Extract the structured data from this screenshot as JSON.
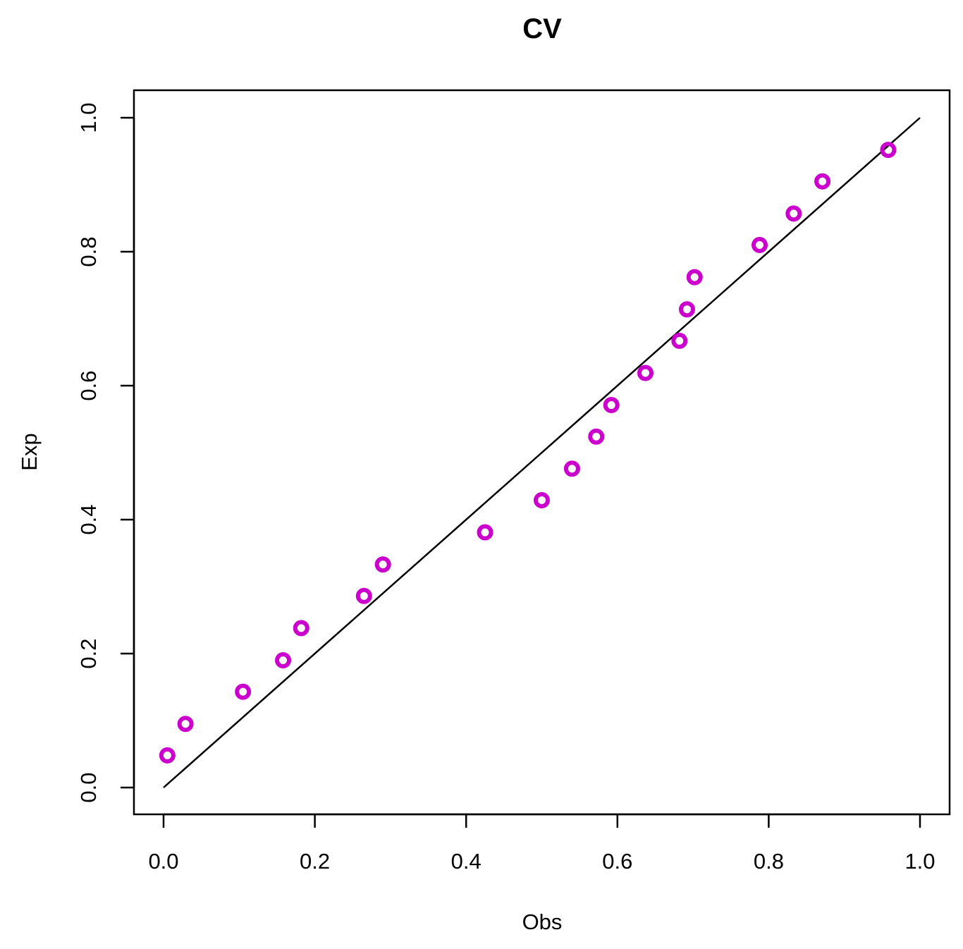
{
  "chart_data": {
    "type": "scatter",
    "title": "CV",
    "xlabel": "Obs",
    "ylabel": "Exp",
    "xlim": [
      0,
      1
    ],
    "ylim": [
      0,
      1
    ],
    "x_ticks": [
      "0.0",
      "0.2",
      "0.4",
      "0.6",
      "0.8",
      "1.0"
    ],
    "y_ticks": [
      "0.0",
      "0.2",
      "0.4",
      "0.6",
      "0.8",
      "1.0"
    ],
    "grid": false,
    "legend": "none",
    "point_color": "#CC00CC",
    "line_color": "#000000",
    "reference_line": {
      "from": [
        0,
        0
      ],
      "to": [
        1,
        1
      ]
    },
    "points": [
      {
        "x": 0.005,
        "y": 0.048
      },
      {
        "x": 0.029,
        "y": 0.095
      },
      {
        "x": 0.105,
        "y": 0.143
      },
      {
        "x": 0.158,
        "y": 0.19
      },
      {
        "x": 0.182,
        "y": 0.238
      },
      {
        "x": 0.265,
        "y": 0.286
      },
      {
        "x": 0.29,
        "y": 0.333
      },
      {
        "x": 0.425,
        "y": 0.381
      },
      {
        "x": 0.5,
        "y": 0.429
      },
      {
        "x": 0.54,
        "y": 0.476
      },
      {
        "x": 0.572,
        "y": 0.524
      },
      {
        "x": 0.592,
        "y": 0.571
      },
      {
        "x": 0.637,
        "y": 0.619
      },
      {
        "x": 0.682,
        "y": 0.667
      },
      {
        "x": 0.692,
        "y": 0.714
      },
      {
        "x": 0.702,
        "y": 0.762
      },
      {
        "x": 0.788,
        "y": 0.81
      },
      {
        "x": 0.833,
        "y": 0.857
      },
      {
        "x": 0.871,
        "y": 0.905
      },
      {
        "x": 0.958,
        "y": 0.952
      }
    ]
  }
}
